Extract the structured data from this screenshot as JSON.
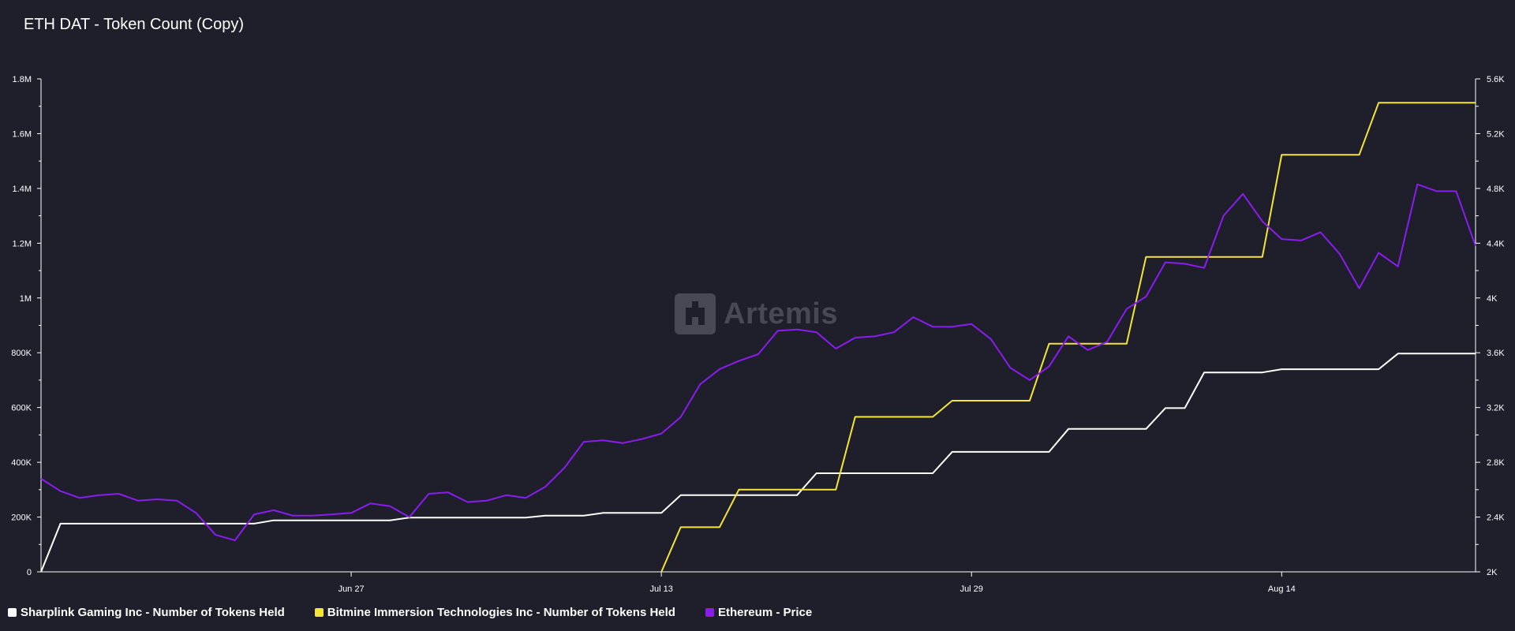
{
  "title": "ETH DAT - Token Count (Copy)",
  "watermark": "Artemis",
  "legend": [
    {
      "label": "Sharplink Gaming Inc - Number of Tokens Held",
      "color": "#ffffff"
    },
    {
      "label": "Bitmine Immersion Technologies Inc - Number of Tokens Held",
      "color": "#f5e633"
    },
    {
      "label": "Ethereum - Price",
      "color": "#8a1cf0"
    }
  ],
  "chart_data": {
    "type": "line",
    "x_range": [
      "2025-06-11",
      "2025-08-24"
    ],
    "x_ticks": [
      {
        "label": "Jun 27",
        "date": "2025-06-27"
      },
      {
        "label": "Jul 13",
        "date": "2025-07-13"
      },
      {
        "label": "Jul 29",
        "date": "2025-07-29"
      },
      {
        "label": "Aug 14",
        "date": "2025-08-14"
      }
    ],
    "y_left": {
      "min": 0,
      "max": 1800000,
      "ticks": [
        "0",
        "200K",
        "400K",
        "600K",
        "800K",
        "1M",
        "1.2M",
        "1.4M",
        "1.6M",
        "1.8M"
      ]
    },
    "y_right": {
      "min": 2000,
      "max": 5600,
      "ticks": [
        "2K",
        "2.4K",
        "2.8K",
        "3.2K",
        "3.6K",
        "4K",
        "4.4K",
        "4.8K",
        "5.2K",
        "5.6K"
      ]
    },
    "series": [
      {
        "name": "Sharplink Gaming Inc - Number of Tokens Held",
        "axis": "left",
        "color": "#ffffff",
        "step": true,
        "points": [
          [
            "2025-06-11",
            0
          ],
          [
            "2025-06-12",
            176000
          ],
          [
            "2025-06-22",
            176000
          ],
          [
            "2025-06-23",
            188000
          ],
          [
            "2025-06-29",
            188000
          ],
          [
            "2025-06-30",
            198000
          ],
          [
            "2025-07-06",
            198000
          ],
          [
            "2025-07-07",
            205000
          ],
          [
            "2025-07-09",
            205000
          ],
          [
            "2025-07-10",
            215000
          ],
          [
            "2025-07-13",
            215000
          ],
          [
            "2025-07-14",
            280000
          ],
          [
            "2025-07-20",
            280000
          ],
          [
            "2025-07-21",
            360000
          ],
          [
            "2025-07-27",
            360000
          ],
          [
            "2025-07-28",
            438000
          ],
          [
            "2025-08-02",
            438000
          ],
          [
            "2025-08-03",
            522000
          ],
          [
            "2025-08-07",
            522000
          ],
          [
            "2025-08-08",
            598000
          ],
          [
            "2025-08-09",
            598000
          ],
          [
            "2025-08-10",
            728000
          ],
          [
            "2025-08-13",
            728000
          ],
          [
            "2025-08-14",
            740000
          ],
          [
            "2025-08-19",
            740000
          ],
          [
            "2025-08-20",
            797000
          ],
          [
            "2025-08-24",
            797000
          ]
        ]
      },
      {
        "name": "Bitmine Immersion Technologies Inc - Number of Tokens Held",
        "axis": "left",
        "color": "#f5e633",
        "step": true,
        "points": [
          [
            "2025-07-13",
            0
          ],
          [
            "2025-07-14",
            163000
          ],
          [
            "2025-07-16",
            163000
          ],
          [
            "2025-07-17",
            300000
          ],
          [
            "2025-07-22",
            300000
          ],
          [
            "2025-07-23",
            566000
          ],
          [
            "2025-07-27",
            566000
          ],
          [
            "2025-07-28",
            625000
          ],
          [
            "2025-08-01",
            625000
          ],
          [
            "2025-08-02",
            833000
          ],
          [
            "2025-08-06",
            833000
          ],
          [
            "2025-08-07",
            1150000
          ],
          [
            "2025-08-13",
            1150000
          ],
          [
            "2025-08-14",
            1523000
          ],
          [
            "2025-08-18",
            1523000
          ],
          [
            "2025-08-19",
            1713000
          ],
          [
            "2025-08-24",
            1713000
          ]
        ]
      },
      {
        "name": "Ethereum - Price",
        "axis": "right",
        "color": "#8a1cf0",
        "step": false,
        "points": [
          [
            "2025-06-11",
            2680
          ],
          [
            "2025-06-12",
            2590
          ],
          [
            "2025-06-13",
            2540
          ],
          [
            "2025-06-14",
            2560
          ],
          [
            "2025-06-15",
            2570
          ],
          [
            "2025-06-16",
            2520
          ],
          [
            "2025-06-17",
            2530
          ],
          [
            "2025-06-18",
            2520
          ],
          [
            "2025-06-19",
            2430
          ],
          [
            "2025-06-20",
            2270
          ],
          [
            "2025-06-21",
            2230
          ],
          [
            "2025-06-22",
            2420
          ],
          [
            "2025-06-23",
            2450
          ],
          [
            "2025-06-24",
            2410
          ],
          [
            "2025-06-25",
            2410
          ],
          [
            "2025-06-26",
            2420
          ],
          [
            "2025-06-27",
            2430
          ],
          [
            "2025-06-28",
            2500
          ],
          [
            "2025-06-29",
            2480
          ],
          [
            "2025-06-30",
            2400
          ],
          [
            "2025-07-01",
            2570
          ],
          [
            "2025-07-02",
            2580
          ],
          [
            "2025-07-03",
            2510
          ],
          [
            "2025-07-04",
            2520
          ],
          [
            "2025-07-05",
            2560
          ],
          [
            "2025-07-06",
            2540
          ],
          [
            "2025-07-07",
            2620
          ],
          [
            "2025-07-08",
            2760
          ],
          [
            "2025-07-09",
            2950
          ],
          [
            "2025-07-10",
            2960
          ],
          [
            "2025-07-11",
            2940
          ],
          [
            "2025-07-12",
            2970
          ],
          [
            "2025-07-13",
            3010
          ],
          [
            "2025-07-14",
            3130
          ],
          [
            "2025-07-15",
            3370
          ],
          [
            "2025-07-16",
            3480
          ],
          [
            "2025-07-17",
            3540
          ],
          [
            "2025-07-18",
            3590
          ],
          [
            "2025-07-19",
            3760
          ],
          [
            "2025-07-20",
            3770
          ],
          [
            "2025-07-21",
            3750
          ],
          [
            "2025-07-22",
            3630
          ],
          [
            "2025-07-23",
            3710
          ],
          [
            "2025-07-24",
            3720
          ],
          [
            "2025-07-25",
            3750
          ],
          [
            "2025-07-26",
            3860
          ],
          [
            "2025-07-27",
            3790
          ],
          [
            "2025-07-28",
            3790
          ],
          [
            "2025-07-29",
            3810
          ],
          [
            "2025-07-30",
            3700
          ],
          [
            "2025-07-31",
            3490
          ],
          [
            "2025-08-01",
            3400
          ],
          [
            "2025-08-02",
            3500
          ],
          [
            "2025-08-03",
            3720
          ],
          [
            "2025-08-04",
            3620
          ],
          [
            "2025-08-05",
            3680
          ],
          [
            "2025-08-06",
            3920
          ],
          [
            "2025-08-07",
            4010
          ],
          [
            "2025-08-08",
            4260
          ],
          [
            "2025-08-09",
            4250
          ],
          [
            "2025-08-10",
            4220
          ],
          [
            "2025-08-11",
            4600
          ],
          [
            "2025-08-12",
            4760
          ],
          [
            "2025-08-13",
            4560
          ],
          [
            "2025-08-14",
            4430
          ],
          [
            "2025-08-15",
            4420
          ],
          [
            "2025-08-16",
            4480
          ],
          [
            "2025-08-17",
            4320
          ],
          [
            "2025-08-18",
            4070
          ],
          [
            "2025-08-19",
            4330
          ],
          [
            "2025-08-20",
            4230
          ],
          [
            "2025-08-21",
            4830
          ],
          [
            "2025-08-22",
            4780
          ],
          [
            "2025-08-23",
            4780
          ],
          [
            "2025-08-24",
            4380
          ]
        ]
      }
    ],
    "grid": false,
    "legend_position": "bottom-left"
  }
}
